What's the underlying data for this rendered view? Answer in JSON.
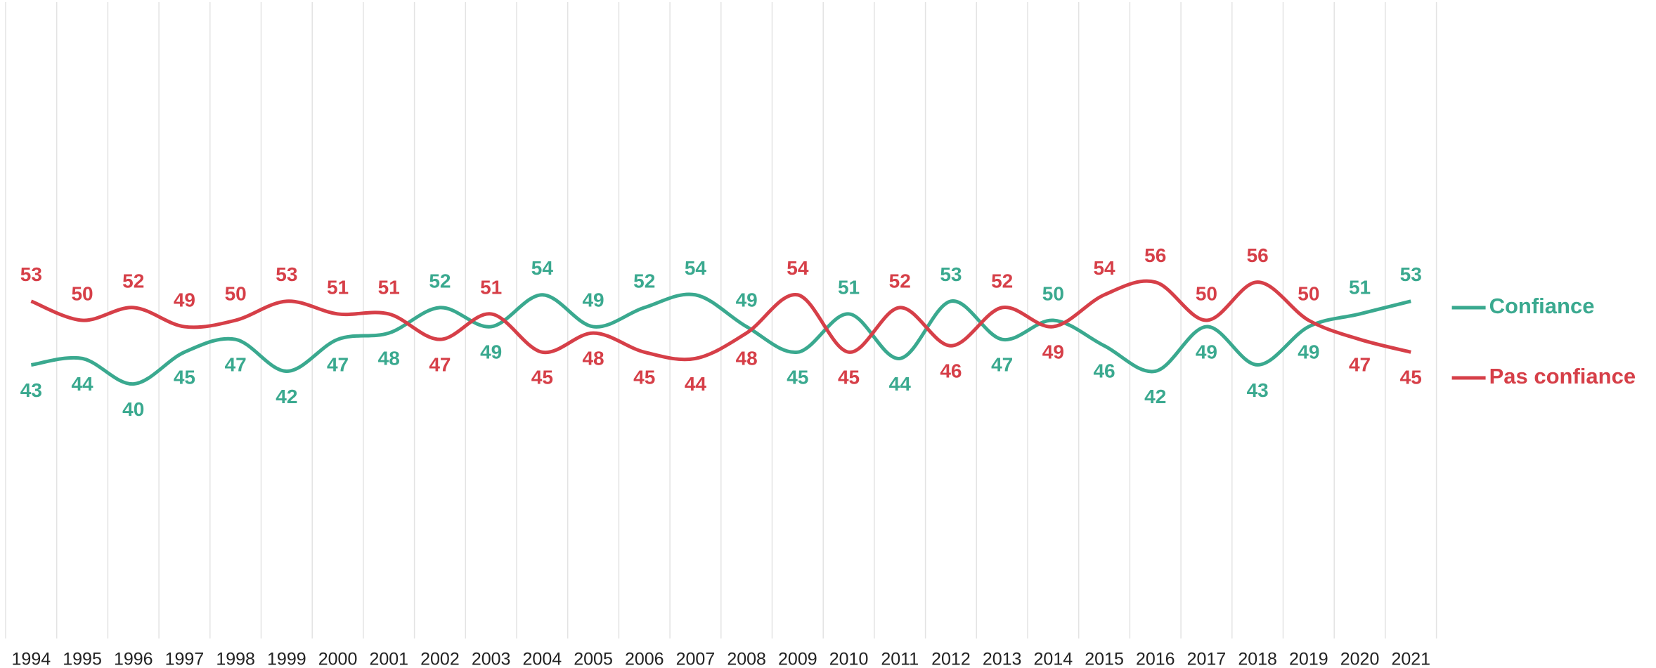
{
  "chart_data": {
    "type": "line",
    "categories": [
      "1994",
      "1995",
      "1996",
      "1997",
      "1998",
      "1999",
      "2000",
      "2001",
      "2002",
      "2003",
      "2004",
      "2005",
      "2006",
      "2007",
      "2008",
      "2009",
      "2010",
      "2011",
      "2012",
      "2013",
      "2014",
      "2015",
      "2016",
      "2017",
      "2018",
      "2019",
      "2020",
      "2021"
    ],
    "series": [
      {
        "name": "Confiance",
        "color": "#3aa98f",
        "values": [
          43,
          44,
          40,
          45,
          47,
          42,
          47,
          48,
          52,
          49,
          54,
          49,
          52,
          54,
          49,
          45,
          51,
          44,
          53,
          47,
          50,
          46,
          42,
          49,
          43,
          49,
          51,
          53
        ]
      },
      {
        "name": "Pas confiance",
        "color": "#d63f48",
        "values": [
          53,
          50,
          52,
          49,
          50,
          53,
          51,
          51,
          47,
          51,
          45,
          48,
          45,
          44,
          48,
          54,
          45,
          52,
          46,
          52,
          49,
          54,
          56,
          50,
          56,
          50,
          47,
          45
        ]
      }
    ],
    "ylim": [
      0,
      100
    ],
    "grid": true,
    "legend": "right",
    "smooth": true
  }
}
